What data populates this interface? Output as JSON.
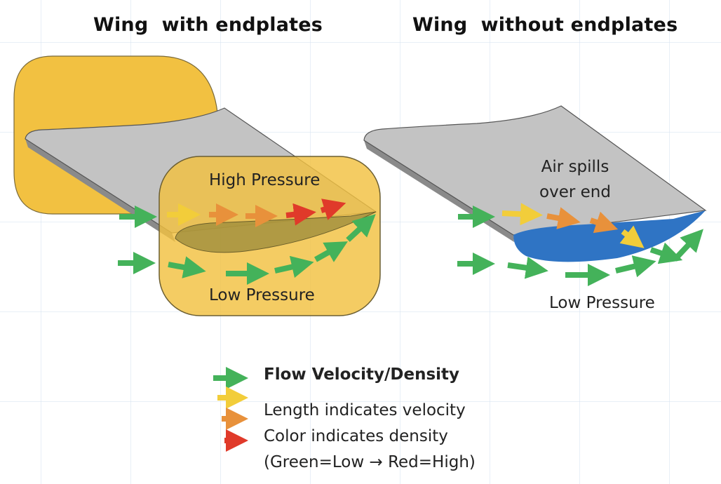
{
  "titles": {
    "left": "Wing  with endplates",
    "right": "Wing  without endplates"
  },
  "left_panel": {
    "high_pressure": "High Pressure",
    "low_pressure": "Low Pressure"
  },
  "right_panel": {
    "spill_line1": "Air spills",
    "spill_line2": "over end",
    "low_pressure": "Low Pressure"
  },
  "legend": {
    "title": "Flow Velocity/Density",
    "line1": "Length indicates velocity",
    "line2": "Color indicates density",
    "line3": "(Green=Low → Red=High)",
    "arrow_colors": [
      "green",
      "yellow",
      "orange",
      "red"
    ]
  },
  "colors": {
    "endplate": "#f2c141",
    "wing_top": "#c3c3c3",
    "wing_edge": "#8a8a8a",
    "vortex_blue": "#2f74c4",
    "green": "#44b25a",
    "yellow": "#f2cd3a",
    "orange": "#e8913b",
    "red": "#e03a2a"
  }
}
